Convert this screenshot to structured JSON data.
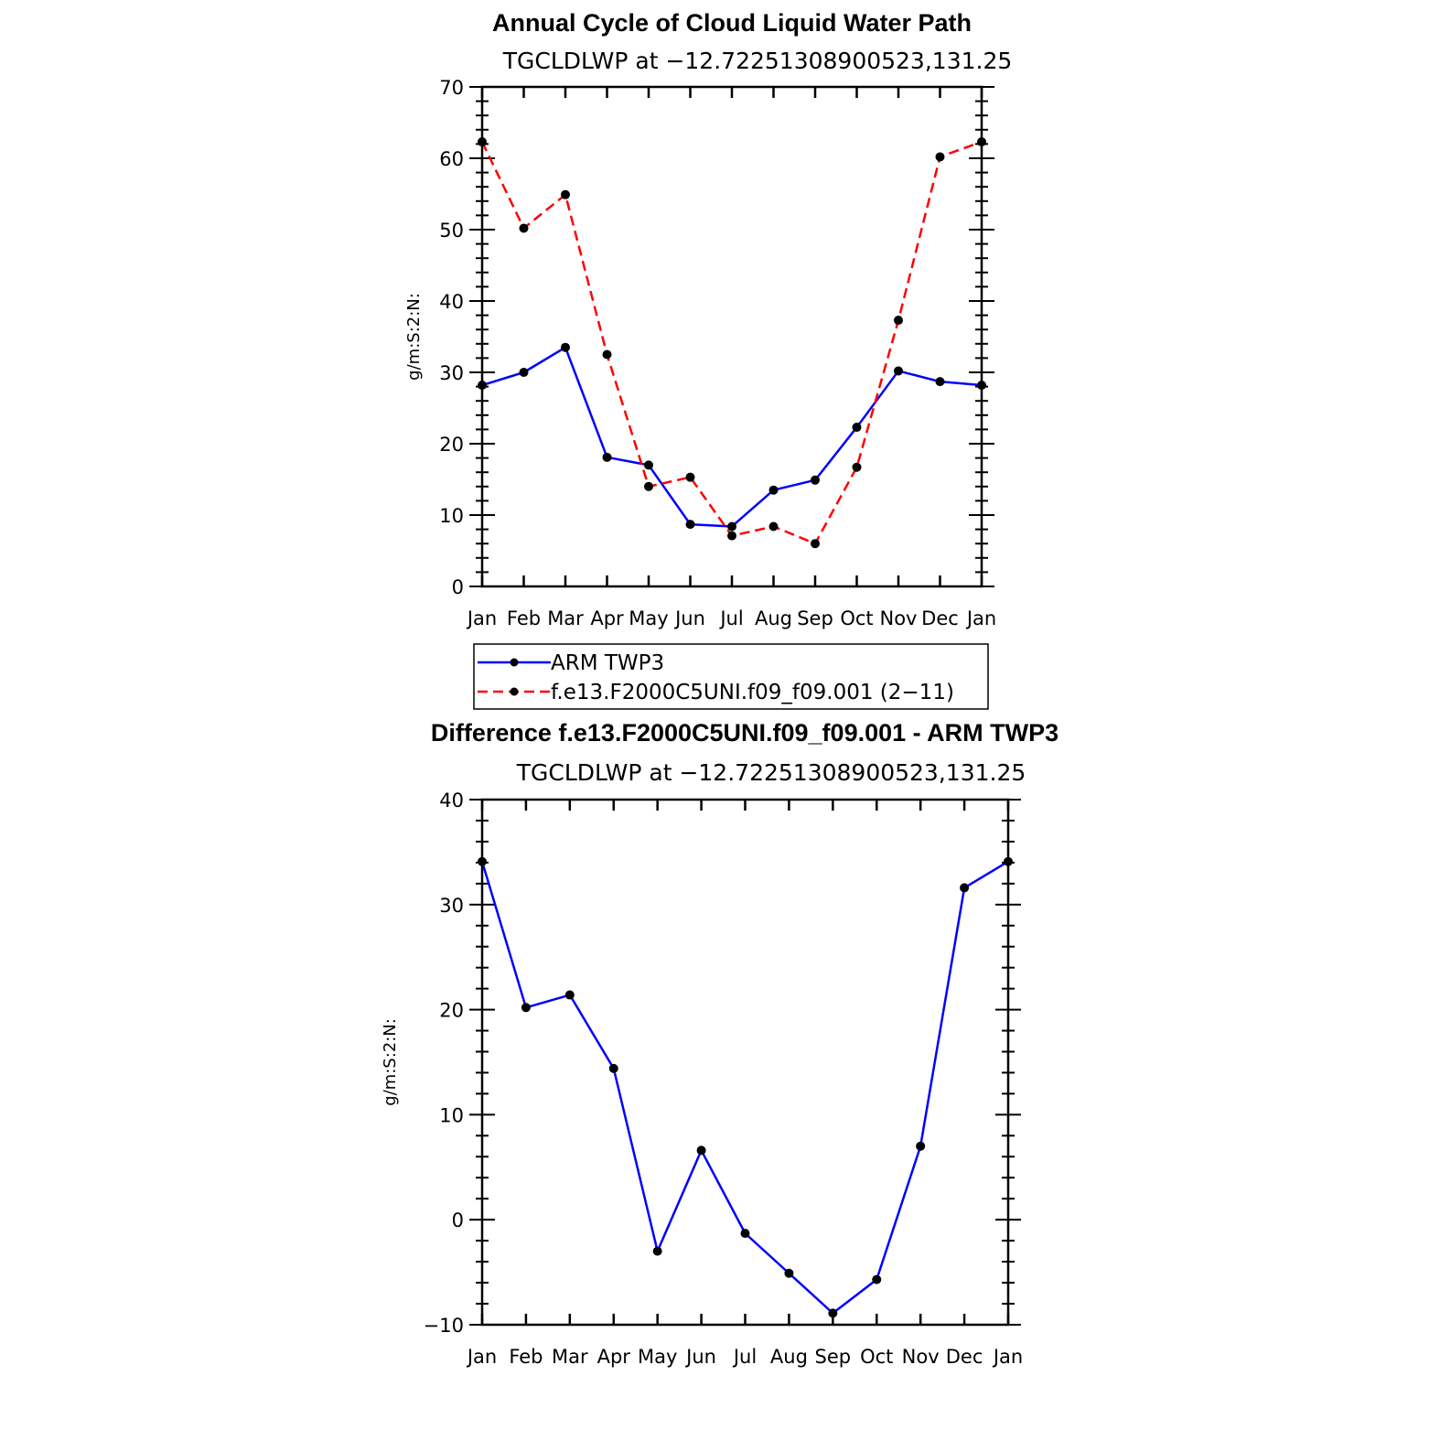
{
  "chart_data": [
    {
      "type": "line",
      "title": "Annual Cycle of Cloud Liquid Water Path",
      "subtitle": "TGCLDLWP at −12.72251308900523,131.25",
      "ylabel": "g/m:S:2:N:",
      "xlabel": "",
      "ylim": [
        0,
        70
      ],
      "yticks": [
        "0",
        "10",
        "20",
        "30",
        "40",
        "50",
        "60",
        "70"
      ],
      "categories": [
        "Jan",
        "Feb",
        "Mar",
        "Apr",
        "May",
        "Jun",
        "Jul",
        "Aug",
        "Sep",
        "Oct",
        "Nov",
        "Dec",
        "Jan"
      ],
      "series": [
        {
          "name": "ARM TWP3",
          "color": "#0000ff",
          "dash": "solid",
          "values": [
            28.2,
            30.0,
            33.5,
            18.1,
            17.0,
            8.7,
            8.4,
            13.5,
            14.9,
            22.3,
            30.2,
            28.7,
            28.2
          ]
        },
        {
          "name": "f.e13.F2000C5UNI.f09_f09.001 (2−11)",
          "color": "#ff0000",
          "dash": "dashed",
          "values": [
            62.3,
            50.2,
            54.9,
            32.5,
            14.0,
            15.3,
            7.1,
            8.4,
            6.0,
            16.7,
            37.3,
            60.2,
            62.3
          ]
        }
      ],
      "legend_position": "below"
    },
    {
      "type": "line",
      "title": "Difference f.e13.F2000C5UNI.f09_f09.001 - ARM TWP3",
      "subtitle": "TGCLDLWP at −12.72251308900523,131.25",
      "ylabel": "g/m:S:2:N:",
      "xlabel": "",
      "ylim": [
        -10,
        40
      ],
      "yticks": [
        "−10",
        "0",
        "10",
        "20",
        "30",
        "40"
      ],
      "categories": [
        "Jan",
        "Feb",
        "Mar",
        "Apr",
        "May",
        "Jun",
        "Jul",
        "Aug",
        "Sep",
        "Oct",
        "Nov",
        "Dec",
        "Jan"
      ],
      "series": [
        {
          "color": "#0000ff",
          "dash": "solid",
          "values": [
            34.1,
            20.2,
            21.4,
            14.4,
            -3.0,
            6.6,
            -1.3,
            -5.1,
            -8.9,
            -5.7,
            7.0,
            31.6,
            34.1
          ]
        }
      ]
    }
  ]
}
